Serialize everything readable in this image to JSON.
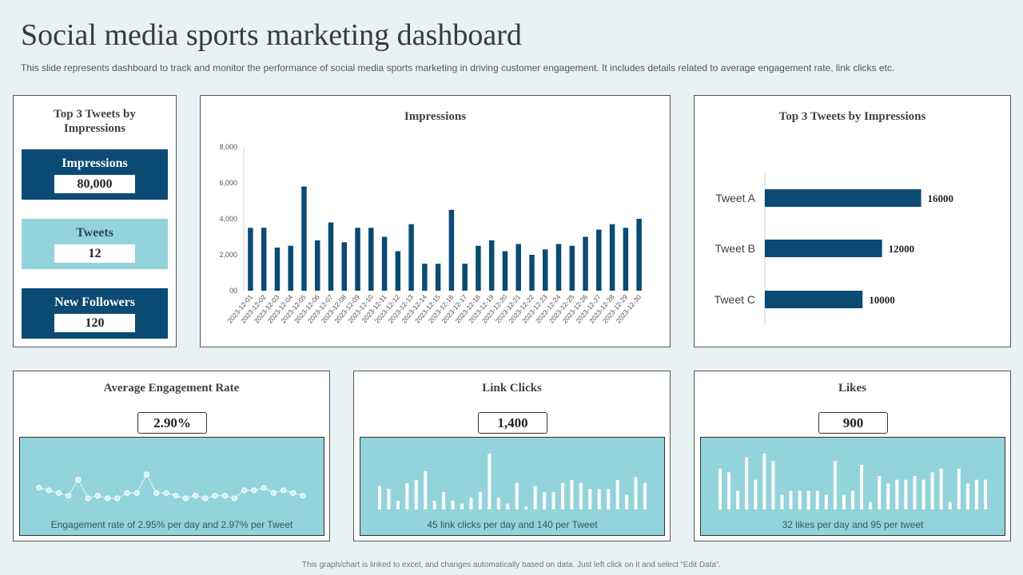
{
  "header": {
    "title": "Social media sports marketing dashboard",
    "subtitle": "This slide represents dashboard to track and monitor the performance of social media sports marketing in driving customer engagement. It includes details related to average engagement rate, link clicks etc."
  },
  "kpis": {
    "title": "Top 3 Tweets by Impressions",
    "items": [
      {
        "label": "Impressions",
        "value": "80,000"
      },
      {
        "label": "Tweets",
        "value": "12"
      },
      {
        "label": "New Followers",
        "value": "120"
      }
    ]
  },
  "metrics": {
    "engagement": {
      "title": "Average Engagement Rate",
      "value": "2.90%",
      "caption": "Engagement rate of 2.95% per day and 2.97% per Tweet"
    },
    "link_clicks": {
      "title": "Link Clicks",
      "value": "1,400",
      "caption": "45 link clicks per day and 140 per Tweet"
    },
    "likes": {
      "title": "Likes",
      "value": "900",
      "caption": "32 likes per day and 95 per tweet"
    }
  },
  "footer": "This graph/chart is linked to excel, and changes automatically based on data. Just left click on it and select “Edit Data”.",
  "colors": {
    "bar": "#0b4a73",
    "light": "#93d3db",
    "spark": "#ffffff"
  },
  "chart_data": [
    {
      "type": "bar",
      "title": "Impressions",
      "categories": [
        "2023-12-01",
        "2023-12-02",
        "2023-12-03",
        "2023-12-04",
        "2023-12-05",
        "2023-12-06",
        "2023-12-07",
        "2023-12-08",
        "2023-12-09",
        "2023-12-10",
        "2023-12-11",
        "2023-12-12",
        "2023-12-13",
        "2023-12-14",
        "2023-12-15",
        "2023-12-16",
        "2023-12-17",
        "2023-12-18",
        "2023-12-19",
        "2023-12-20",
        "2023-12-21",
        "2023-12-22",
        "2023-12-23",
        "2023-12-24",
        "2023-12-25",
        "2023-12-26",
        "2023-12-27",
        "2023-12-28",
        "2023-12-29",
        "2023-12-30"
      ],
      "values": [
        3500,
        3500,
        2400,
        2500,
        5800,
        2800,
        3800,
        2700,
        3500,
        3500,
        3000,
        2200,
        3700,
        1500,
        1500,
        4500,
        1500,
        2500,
        2800,
        2200,
        2600,
        2000,
        2300,
        2600,
        2500,
        3000,
        3400,
        3700,
        3500,
        4000
      ],
      "yticks": [
        "00",
        "2,000",
        "4,000",
        "6,000",
        "8,000"
      ],
      "ylim": [
        0,
        8000
      ],
      "xlabel": "",
      "ylabel": ""
    },
    {
      "type": "bar",
      "orientation": "horizontal",
      "title": "Top 3 Tweets by Impressions",
      "categories": [
        "Tweet A",
        "Tweet B",
        "Tweet C"
      ],
      "values": [
        16000,
        12000,
        10000
      ],
      "labels": [
        "16000",
        "12000",
        "10000"
      ],
      "xlim": [
        0,
        18000
      ]
    },
    {
      "type": "line",
      "title": "Average Engagement Rate trend",
      "values": [
        5,
        4,
        3,
        2,
        8,
        1,
        2,
        1,
        1,
        3,
        3,
        10,
        3,
        3,
        2,
        1,
        2,
        1,
        2,
        2,
        1,
        4,
        4,
        5,
        3,
        4,
        3,
        2
      ]
    },
    {
      "type": "bar",
      "title": "Link Clicks trend",
      "values": [
        8,
        7,
        3,
        9,
        10,
        13,
        3,
        6,
        3,
        2,
        4,
        6,
        19,
        4,
        2,
        9,
        1,
        8,
        6,
        6,
        9,
        10,
        9,
        7,
        7,
        7,
        10,
        5,
        11,
        9
      ]
    },
    {
      "type": "bar",
      "title": "Likes trend",
      "values": [
        11,
        10,
        5,
        14,
        8,
        15,
        13,
        4,
        5,
        5,
        5,
        5,
        4,
        13,
        4,
        5,
        12,
        2,
        9,
        7,
        8,
        8,
        9,
        8,
        10,
        11,
        2,
        11,
        7,
        8,
        8
      ]
    }
  ]
}
